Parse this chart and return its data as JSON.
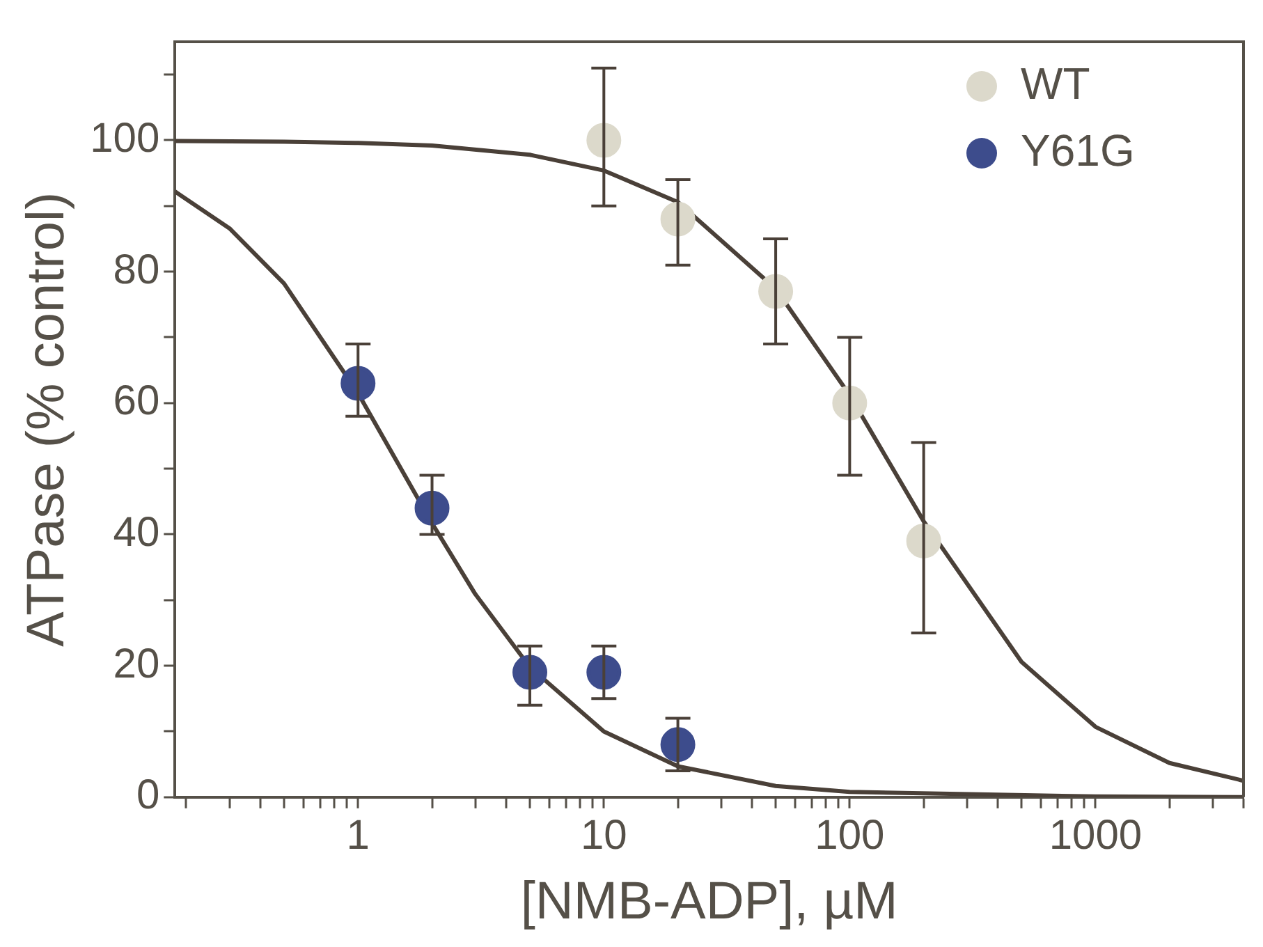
{
  "chart_data": {
    "type": "scatter",
    "xlabel": "[NMB-ADP], µM",
    "ylabel": "ATPase (% control)",
    "log": "x",
    "xlim": [
      0.18,
      4000
    ],
    "ylim": [
      0,
      115
    ],
    "xticks": [
      {
        "value": 0.2,
        "label": null
      },
      {
        "value": 0.3,
        "label": null
      },
      {
        "value": 0.4,
        "label": null
      },
      {
        "value": 0.5,
        "label": null
      },
      {
        "value": 0.6,
        "label": null
      },
      {
        "value": 0.7,
        "label": null
      },
      {
        "value": 0.8,
        "label": null
      },
      {
        "value": 0.9,
        "label": null
      },
      1,
      {
        "value": 2,
        "label": null
      },
      {
        "value": 3,
        "label": null
      },
      {
        "value": 4,
        "label": null
      },
      {
        "value": 5,
        "label": null
      },
      {
        "value": 6,
        "label": null
      },
      {
        "value": 7,
        "label": null
      },
      {
        "value": 8,
        "label": null
      },
      {
        "value": 9,
        "label": null
      },
      10,
      {
        "value": 20,
        "label": null
      },
      {
        "value": 30,
        "label": null
      },
      {
        "value": 40,
        "label": null
      },
      {
        "value": 50,
        "label": null
      },
      {
        "value": 60,
        "label": null
      },
      {
        "value": 70,
        "label": null
      },
      {
        "value": 80,
        "label": null
      },
      {
        "value": 90,
        "label": null
      },
      100,
      {
        "value": 200,
        "label": null
      },
      {
        "value": 300,
        "label": null
      },
      {
        "value": 400,
        "label": null
      },
      {
        "value": 500,
        "label": null
      },
      {
        "value": 600,
        "label": null
      },
      {
        "value": 700,
        "label": null
      },
      {
        "value": 800,
        "label": null
      },
      {
        "value": 900,
        "label": null
      },
      1000,
      {
        "value": 2000,
        "label": null
      },
      {
        "value": 3000,
        "label": null
      },
      {
        "value": 4000,
        "label": null
      }
    ],
    "yticks": [
      0,
      {
        "value": 10,
        "label": null
      },
      20,
      {
        "value": 30,
        "label": null
      },
      40,
      {
        "value": 50,
        "label": null
      },
      60,
      {
        "value": 70,
        "label": null
      },
      80,
      {
        "value": 90,
        "label": null
      },
      100,
      {
        "value": 110,
        "label": null
      }
    ],
    "grid": false,
    "legend": "top right",
    "marker": "circle",
    "series": [
      {
        "name": "WT",
        "color": "#dcd9cb",
        "x": [
          10,
          20,
          50,
          100,
          200
        ],
        "values": [
          100,
          88,
          77,
          60,
          39
        ],
        "errors": [
          [
            90,
            111
          ],
          [
            81,
            94
          ],
          [
            69,
            85
          ],
          [
            49,
            70
          ],
          [
            25,
            54
          ]
        ]
      },
      {
        "name": "Y61G",
        "color": "#3d4c8c",
        "x": [
          1,
          2,
          5,
          10,
          20
        ],
        "values": [
          63,
          44,
          19,
          19,
          8
        ],
        "errors": [
          [
            58,
            69
          ],
          [
            40,
            49
          ],
          [
            14,
            23
          ],
          [
            15,
            23
          ],
          [
            4,
            12
          ]
        ]
      },
      {
        "type": "line",
        "color": "#4a4038",
        "marker": "none",
        "x": [
          0.18,
          0.5,
          1,
          2,
          5,
          10,
          20,
          50,
          100,
          200,
          500,
          1000,
          2000,
          4000
        ],
        "values": [
          99.9,
          99.8,
          99.6,
          99.2,
          97.8,
          95.4,
          90.6,
          77.4,
          61.2,
          42.0,
          20.6,
          10.7,
          5.2,
          2.5
        ]
      },
      {
        "type": "line",
        "color": "#4a4038",
        "marker": "none",
        "x": [
          0.18,
          0.3,
          0.5,
          1,
          2,
          3,
          5,
          10,
          20,
          50,
          100,
          1000,
          4000
        ],
        "values": [
          92.2,
          86.6,
          78.2,
          61.5,
          41.7,
          30.9,
          19.8,
          10.0,
          4.7,
          1.7,
          0.8,
          0.1,
          0.0
        ]
      }
    ]
  }
}
